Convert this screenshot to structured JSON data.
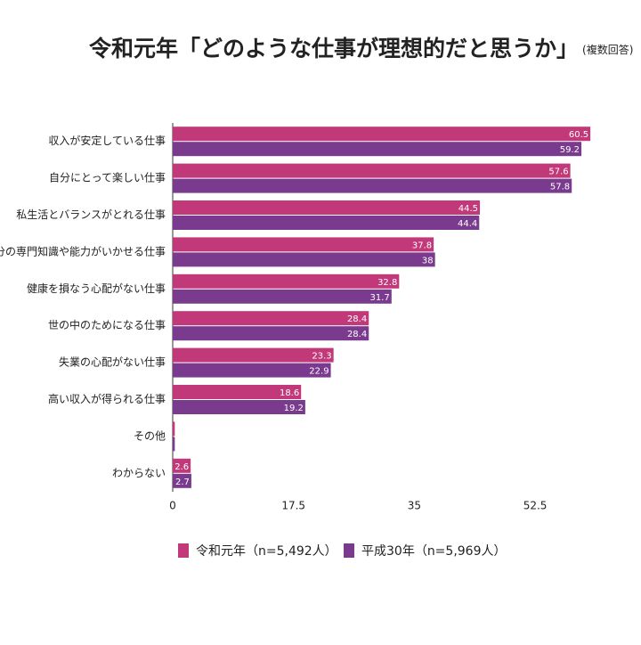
{
  "chart_data": {
    "type": "hbar",
    "title": "令和元年「どのような仕事が理想的だと思うか」",
    "subtitle": "(複数回答)",
    "categories": [
      "収入が安定している仕事",
      "自分にとって楽しい仕事",
      "私生活とバランスがとれる仕事",
      "自分の専門知識や能力がいかせる仕事",
      "健康を損なう心配がない仕事",
      "世の中のためになる仕事",
      "失業の心配がない仕事",
      "高い収入が得られる仕事",
      "その他",
      "わからない"
    ],
    "series": [
      {
        "name": "令和元年（n=5,492人）",
        "color": "#c2397a",
        "values": [
          60.5,
          57.6,
          44.5,
          37.8,
          32.8,
          28.4,
          23.3,
          18.6,
          0.3,
          2.6
        ],
        "value_labels": [
          "60.5",
          "57.6",
          "44.5",
          "37.8",
          "32.8",
          "28.4",
          "23.3",
          "18.6",
          null,
          "2.6"
        ]
      },
      {
        "name": "平成30年（n=5,969人）",
        "color": "#7a3b8e",
        "values": [
          59.2,
          57.8,
          44.4,
          38,
          31.7,
          28.4,
          22.9,
          19.2,
          0.3,
          2.7
        ],
        "value_labels": [
          "59.2",
          "57.8",
          "44.4",
          "38",
          "31.7",
          "28.4",
          "22.9",
          "19.2",
          null,
          "2.7"
        ]
      }
    ],
    "xlim": [
      0,
      61
    ],
    "xticks": [
      0,
      17.5,
      35,
      52.5
    ]
  }
}
